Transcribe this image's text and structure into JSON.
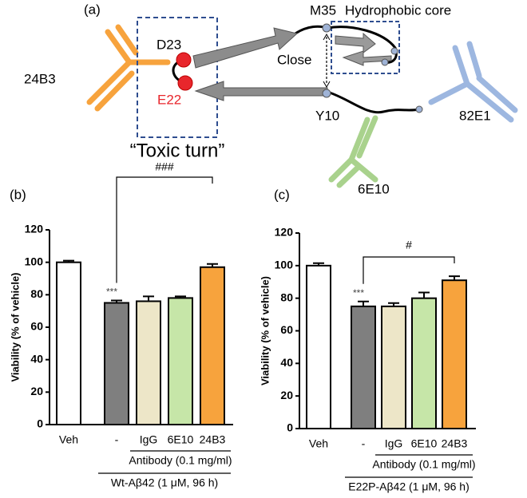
{
  "diagram": {
    "panel_label": "(a)",
    "antibody_left": "24B3",
    "residue_d23": "D23",
    "residue_e22": "E22",
    "turn_label": "“Toxic turn”",
    "residue_m35": "M35",
    "core_label": "Hydrophobic core",
    "close_label": "Close",
    "residue_y10": "Y10",
    "antibody_right": "82E1",
    "antibody_bottom": "6E10"
  },
  "chart_data": [
    {
      "type": "bar",
      "panel_label": "(b)",
      "ylabel": "Viability (% of vehicle)",
      "categories": [
        "Veh",
        "-",
        "IgG",
        "6E10",
        "24B3"
      ],
      "values": [
        100,
        75,
        76,
        78,
        97
      ],
      "errors": [
        1,
        1.5,
        3,
        1,
        2
      ],
      "colors": [
        "#ffffff",
        "#7f7f7f",
        "#ede6c8",
        "#c6e6a8",
        "#f7a33d"
      ],
      "ylim": [
        0,
        120
      ],
      "yticks": [
        0,
        20,
        40,
        60,
        80,
        100,
        120
      ],
      "significance": "***",
      "comparison": "###",
      "group_label": "Antibody (0.1 mg/ml)",
      "condition_label": "Wt-Aβ42 (1 μM, 96 h)"
    },
    {
      "type": "bar",
      "panel_label": "(c)",
      "ylabel": "Viability (% of vehicle)",
      "categories": [
        "Veh",
        "-",
        "IgG",
        "6E10",
        "24B3"
      ],
      "values": [
        100,
        75,
        75,
        80,
        91
      ],
      "errors": [
        1.5,
        3,
        2,
        3.5,
        2.5
      ],
      "colors": [
        "#ffffff",
        "#7f7f7f",
        "#ede6c8",
        "#c6e6a8",
        "#f7a33d"
      ],
      "ylim": [
        0,
        120
      ],
      "yticks": [
        0,
        20,
        40,
        60,
        80,
        100,
        120
      ],
      "significance": "***",
      "comparison": "#",
      "group_label": "Antibody (0.1 mg/ml)",
      "condition_label": "E22P-Aβ42 (1 μM, 96 h)"
    }
  ]
}
